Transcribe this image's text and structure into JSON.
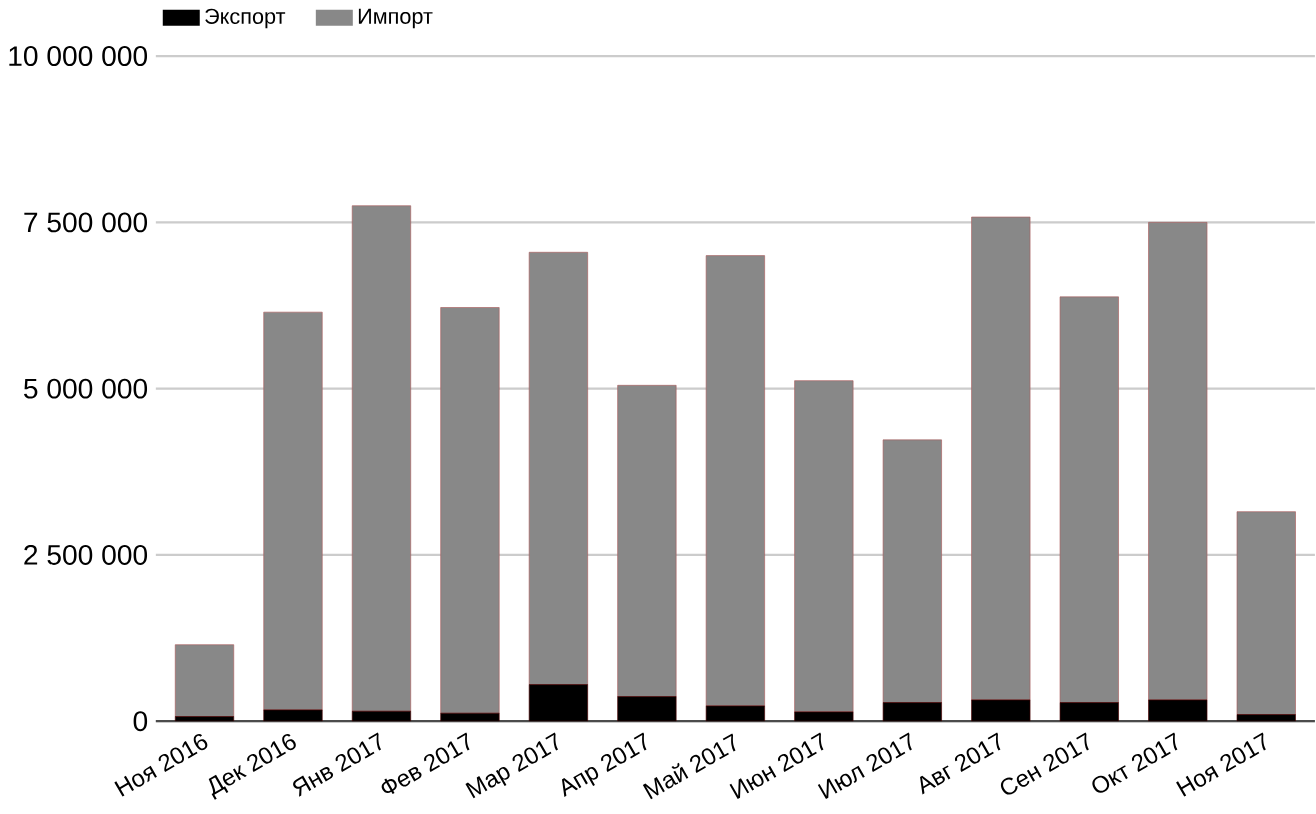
{
  "chart_data": {
    "type": "bar",
    "stacked": true,
    "legend": "top left",
    "grid": "y",
    "categories": [
      "Ноя 2016",
      "Дек 2016",
      "Янв 2017",
      "Фев 2017",
      "Мар 2017",
      "Апр 2017",
      "Май 2017",
      "Июн 2017",
      "Июл 2017",
      "Авг 2017",
      "Сен 2017",
      "Окт 2017",
      "Ноя 2017"
    ],
    "series": [
      {
        "name": "Экспорт",
        "color": "#000000",
        "values": [
          70000,
          170000,
          150000,
          120000,
          550000,
          370000,
          230000,
          140000,
          280000,
          320000,
          280000,
          320000,
          100000
        ]
      },
      {
        "name": "Импорт",
        "color": "#888888",
        "values": [
          1080000,
          5980000,
          7600000,
          6100000,
          6500000,
          4680000,
          6770000,
          4980000,
          3950000,
          7260000,
          6100000,
          7180000,
          3050000
        ]
      }
    ],
    "ylim": [
      0,
      10000000
    ],
    "yticks": [
      0,
      {
        "value": 2500000,
        "label": "2 500 000"
      },
      {
        "value": 5000000,
        "label": "5 000 000"
      },
      {
        "value": 7500000,
        "label": "7 500 000"
      },
      {
        "value": 10000000,
        "label": "10 000 000"
      }
    ]
  }
}
